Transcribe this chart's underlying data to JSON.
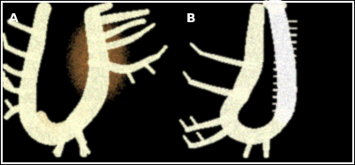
{
  "figure_width": 4.0,
  "figure_height": 1.86,
  "dpi": 100,
  "background_color": "#000000",
  "border_color": "#ffffff",
  "label_A": "A",
  "label_B": "B",
  "label_color": "#ffffff",
  "label_fontsize": 10,
  "label_fontweight": "bold",
  "panel_A": {
    "vessel_color": [
      200,
      170,
      110
    ],
    "vessel_highlight": [
      230,
      210,
      160
    ],
    "vessel_shadow": [
      130,
      90,
      40
    ],
    "aneurysm_color": [
      160,
      110,
      60
    ],
    "bg": [
      0,
      0,
      0
    ]
  },
  "panel_B": {
    "vessel_color": [
      190,
      170,
      120
    ],
    "vessel_highlight": [
      220,
      210,
      170
    ],
    "vessel_shadow": [
      140,
      110,
      70
    ],
    "stent_color": [
      180,
      175,
      165
    ],
    "bg": [
      0,
      0,
      0
    ]
  }
}
